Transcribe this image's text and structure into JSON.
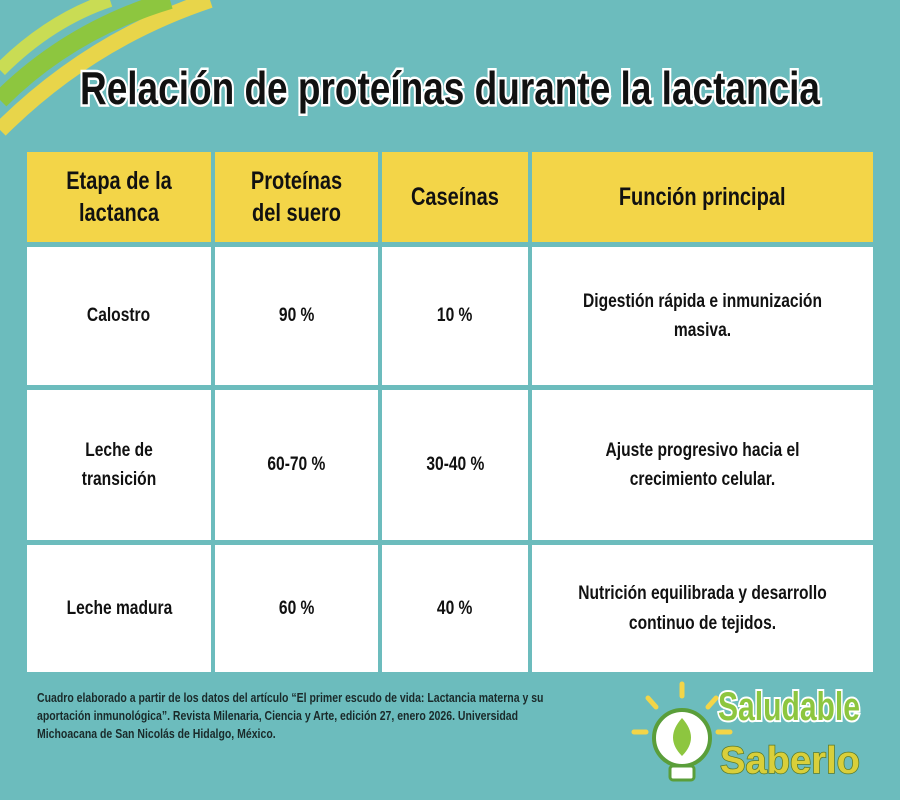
{
  "header": {
    "title": "Relación de proteínas durante la lactancia"
  },
  "table": {
    "columns": [
      "Etapa de la lactanca",
      "Proteínas del suero",
      "Caseínas",
      "Función principal"
    ],
    "rows": [
      [
        "Calostro",
        "90 %",
        "10 %",
        "Digestión rápida e inmunización masiva."
      ],
      [
        "Leche de transición",
        "60-70 %",
        "30-40 %",
        "Ajuste progresivo hacia el crecimiento celular."
      ],
      [
        "Leche madura",
        "60 %",
        "40 %",
        "Nutrición equilibrada y desarrollo continuo de tejidos."
      ]
    ]
  },
  "footer": {
    "source": "Cuadro elaborado a partir de los datos del artículo “El primer escudo de vida: Lactancia materna y su aportación inmunológica”. Revista Milenaria, Ciencia y Arte, edición 27, enero 2026. Universidad Michoacana de San Nicolás de Hidalgo, México.",
    "logo": [
      "Saludable",
      "Saberlo"
    ]
  }
}
